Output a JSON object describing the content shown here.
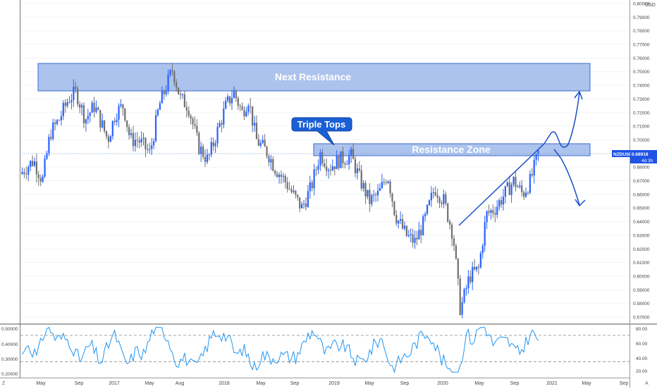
{
  "price_scale": {
    "currency": "USD",
    "ticks": [
      "0.80000",
      "0.79000",
      "0.78000",
      "0.77000",
      "0.76000",
      "0.75000",
      "0.74000",
      "0.73000",
      "0.72000",
      "0.71000",
      "0.70000",
      "0.69000",
      "0.68000",
      "0.67000",
      "0.66000",
      "0.65000",
      "0.64000",
      "0.63000",
      "0.62000",
      "0.61000",
      "0.60000",
      "0.59000",
      "0.58000",
      "0.57000"
    ],
    "last_price_symbol": "NZDUSD",
    "last_price_value": "0.68918",
    "countdown": "4d 3h",
    "ylim": [
      0.565,
      0.805
    ]
  },
  "indicator_scale": {
    "left_ticks": [
      "0.50000",
      "0.40000",
      "0.30000",
      "0.20000"
    ],
    "right_ticks": [
      "80.00",
      "60.00",
      "40.00",
      "20.00"
    ],
    "dashed_levels": [
      70,
      30
    ]
  },
  "time_axis": {
    "labels": [
      "May",
      "Sep",
      "2017",
      "May",
      "Aug",
      "2018",
      "May",
      "Sep",
      "2019",
      "May",
      "Sep",
      "2020",
      "May",
      "Sep",
      "2021",
      "May",
      "Sep"
    ],
    "left_corner": "Z",
    "right_corner": "A"
  },
  "annotations": {
    "next_resistance_label": "Next Resistance",
    "resistance_zone_label": "Resistance Zone",
    "triple_tops_label": "Triple Tops"
  },
  "colors": {
    "up_candle": "#2962ff",
    "down_candle": "#707070",
    "zone_fill": "#9db9ea",
    "zone_border": "#3d6bcc",
    "callout": "#1a5fd6",
    "rsi_line": "#2196f3",
    "price_label_bg": "#1e53e5"
  },
  "chart_data": {
    "type": "candlestick",
    "symbol": "NZDUSD",
    "timeframe": "weekly",
    "x_range": [
      "2016-03",
      "2021-10"
    ],
    "ylim": [
      0.565,
      0.805
    ],
    "path": [
      {
        "x": "2016-03-01",
        "y": 0.675
      },
      {
        "x": "2016-04-15",
        "y": 0.685
      },
      {
        "x": "2016-05-15",
        "y": 0.67
      },
      {
        "x": "2016-06-10",
        "y": 0.705
      },
      {
        "x": "2016-07-10",
        "y": 0.715
      },
      {
        "x": "2016-08-10",
        "y": 0.73
      },
      {
        "x": "2016-09-05",
        "y": 0.735
      },
      {
        "x": "2016-10-05",
        "y": 0.715
      },
      {
        "x": "2016-11-05",
        "y": 0.725
      },
      {
        "x": "2016-12-20",
        "y": 0.7
      },
      {
        "x": "2017-01-15",
        "y": 0.72
      },
      {
        "x": "2017-02-10",
        "y": 0.725
      },
      {
        "x": "2017-03-05",
        "y": 0.7
      },
      {
        "x": "2017-04-01",
        "y": 0.7
      },
      {
        "x": "2017-05-10",
        "y": 0.69
      },
      {
        "x": "2017-06-10",
        "y": 0.725
      },
      {
        "x": "2017-07-05",
        "y": 0.74
      },
      {
        "x": "2017-07-25",
        "y": 0.752
      },
      {
        "x": "2017-08-20",
        "y": 0.73
      },
      {
        "x": "2017-09-15",
        "y": 0.725
      },
      {
        "x": "2017-10-20",
        "y": 0.695
      },
      {
        "x": "2017-11-20",
        "y": 0.685
      },
      {
        "x": "2017-12-20",
        "y": 0.705
      },
      {
        "x": "2018-01-20",
        "y": 0.725
      },
      {
        "x": "2018-02-15",
        "y": 0.735
      },
      {
        "x": "2018-03-15",
        "y": 0.72
      },
      {
        "x": "2018-04-05",
        "y": 0.73
      },
      {
        "x": "2018-05-01",
        "y": 0.7
      },
      {
        "x": "2018-06-10",
        "y": 0.69
      },
      {
        "x": "2018-07-01",
        "y": 0.68
      },
      {
        "x": "2018-08-05",
        "y": 0.67
      },
      {
        "x": "2018-09-01",
        "y": 0.66
      },
      {
        "x": "2018-10-01",
        "y": 0.65
      },
      {
        "x": "2018-11-01",
        "y": 0.665
      },
      {
        "x": "2018-12-01",
        "y": 0.69
      },
      {
        "x": "2019-01-01",
        "y": 0.68
      },
      {
        "x": "2019-02-01",
        "y": 0.685
      },
      {
        "x": "2019-03-15",
        "y": 0.688
      },
      {
        "x": "2019-04-15",
        "y": 0.67
      },
      {
        "x": "2019-05-15",
        "y": 0.655
      },
      {
        "x": "2019-06-15",
        "y": 0.66
      },
      {
        "x": "2019-07-15",
        "y": 0.675
      },
      {
        "x": "2019-08-10",
        "y": 0.645
      },
      {
        "x": "2019-09-15",
        "y": 0.63
      },
      {
        "x": "2019-10-15",
        "y": 0.625
      },
      {
        "x": "2019-11-15",
        "y": 0.64
      },
      {
        "x": "2019-12-20",
        "y": 0.665
      },
      {
        "x": "2020-01-20",
        "y": 0.655
      },
      {
        "x": "2020-02-20",
        "y": 0.63
      },
      {
        "x": "2020-03-15",
        "y": 0.575
      },
      {
        "x": "2020-04-15",
        "y": 0.6
      },
      {
        "x": "2020-05-15",
        "y": 0.605
      },
      {
        "x": "2020-06-10",
        "y": 0.645
      },
      {
        "x": "2020-07-10",
        "y": 0.65
      },
      {
        "x": "2020-08-10",
        "y": 0.66
      },
      {
        "x": "2020-09-10",
        "y": 0.67
      },
      {
        "x": "2020-10-10",
        "y": 0.66
      },
      {
        "x": "2020-11-05",
        "y": 0.67
      },
      {
        "x": "2020-12-01",
        "y": 0.69
      }
    ]
  }
}
